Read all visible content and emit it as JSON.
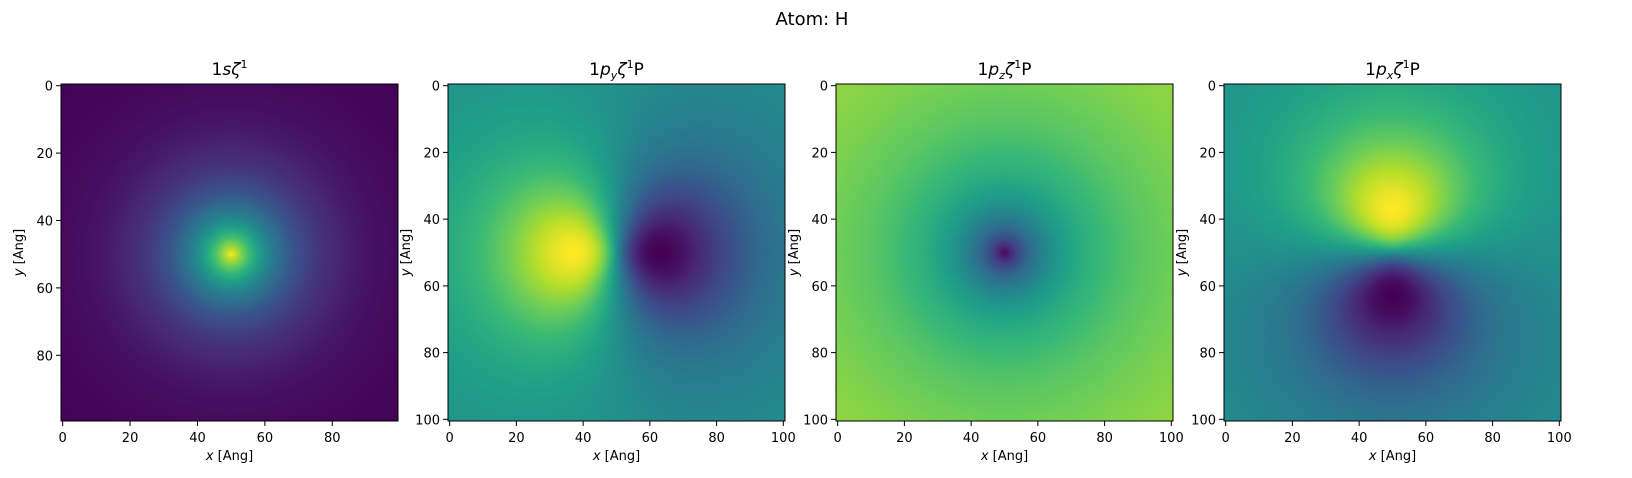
{
  "figure": {
    "suptitle": "Atom: H"
  },
  "colors": {
    "colormap": "viridis",
    "viridis_stops": [
      "#440154",
      "#482878",
      "#3e4989",
      "#31688e",
      "#26828e",
      "#1f9e89",
      "#35b779",
      "#6ece58",
      "#b5de2b",
      "#fde725"
    ]
  },
  "chart_data": [
    {
      "type": "heatmap",
      "title_parts": [
        "1",
        "s",
        "ζ",
        "1",
        "",
        ""
      ],
      "xlabel_var": "x",
      "xlabel_unit": " [Ang]",
      "ylabel_var": "y",
      "ylabel_unit": " [Ang]",
      "xlim": [
        -0.5,
        99.5
      ],
      "ylim": [
        99.5,
        -0.5
      ],
      "xticks": [
        0,
        20,
        40,
        60,
        80
      ],
      "xtick_labels": [
        "0",
        "20",
        "40",
        "60",
        "80"
      ],
      "yticks": [
        0,
        20,
        40,
        60,
        80
      ],
      "ytick_labels": [
        "0",
        "20",
        "40",
        "60",
        "80"
      ],
      "grid": false,
      "field": {
        "orbital": "s",
        "center": [
          50,
          50
        ],
        "width": 14
      }
    },
    {
      "type": "heatmap",
      "title_parts": [
        "1",
        "p",
        "ζ",
        "1",
        "y",
        "P"
      ],
      "xlabel_var": "x",
      "xlabel_unit": " [Ang]",
      "ylabel_var": "y",
      "ylabel_unit": " [Ang]",
      "xlim": [
        -0.5,
        100.5
      ],
      "ylim": [
        100.5,
        -0.5
      ],
      "xticks": [
        0,
        20,
        40,
        60,
        80,
        100
      ],
      "xtick_labels": [
        "0",
        "20",
        "40",
        "60",
        "80",
        "100"
      ],
      "yticks": [
        0,
        20,
        40,
        60,
        80,
        100
      ],
      "ytick_labels": [
        "0",
        "20",
        "40",
        "60",
        "80",
        "100"
      ],
      "grid": false,
      "field": {
        "orbital": "p",
        "axis": "x_neg",
        "center": [
          50,
          50
        ],
        "width": 13,
        "lobe_offset": 10
      }
    },
    {
      "type": "heatmap",
      "title_parts": [
        "1",
        "p",
        "ζ",
        "1",
        "z",
        "P"
      ],
      "xlabel_var": "x",
      "xlabel_unit": " [Ang]",
      "ylabel_var": "y",
      "ylabel_unit": " [Ang]",
      "xlim": [
        -0.5,
        100.5
      ],
      "ylim": [
        100.5,
        -0.5
      ],
      "xticks": [
        0,
        20,
        40,
        60,
        80,
        100
      ],
      "xtick_labels": [
        "0",
        "20",
        "40",
        "60",
        "80",
        "100"
      ],
      "yticks": [
        0,
        20,
        40,
        60,
        80,
        100
      ],
      "ytick_labels": [
        "0",
        "20",
        "40",
        "60",
        "80",
        "100"
      ],
      "grid": false,
      "field": {
        "orbital": "pz",
        "center": [
          50,
          50
        ],
        "width": 13
      }
    },
    {
      "type": "heatmap",
      "title_parts": [
        "1",
        "p",
        "ζ",
        "1",
        "x",
        "P"
      ],
      "xlabel_var": "x",
      "xlabel_unit": " [Ang]",
      "ylabel_var": "y",
      "ylabel_unit": " [Ang]",
      "xlim": [
        -0.5,
        100.5
      ],
      "ylim": [
        100.5,
        -0.5
      ],
      "xticks": [
        0,
        20,
        40,
        60,
        80,
        100
      ],
      "xtick_labels": [
        "0",
        "20",
        "40",
        "60",
        "80",
        "100"
      ],
      "yticks": [
        0,
        20,
        40,
        60,
        80,
        100
      ],
      "ytick_labels": [
        "0",
        "20",
        "40",
        "60",
        "80",
        "100"
      ],
      "grid": false,
      "field": {
        "orbital": "p",
        "axis": "y_neg",
        "center": [
          50,
          50
        ],
        "width": 13,
        "lobe_offset": 9
      }
    }
  ]
}
